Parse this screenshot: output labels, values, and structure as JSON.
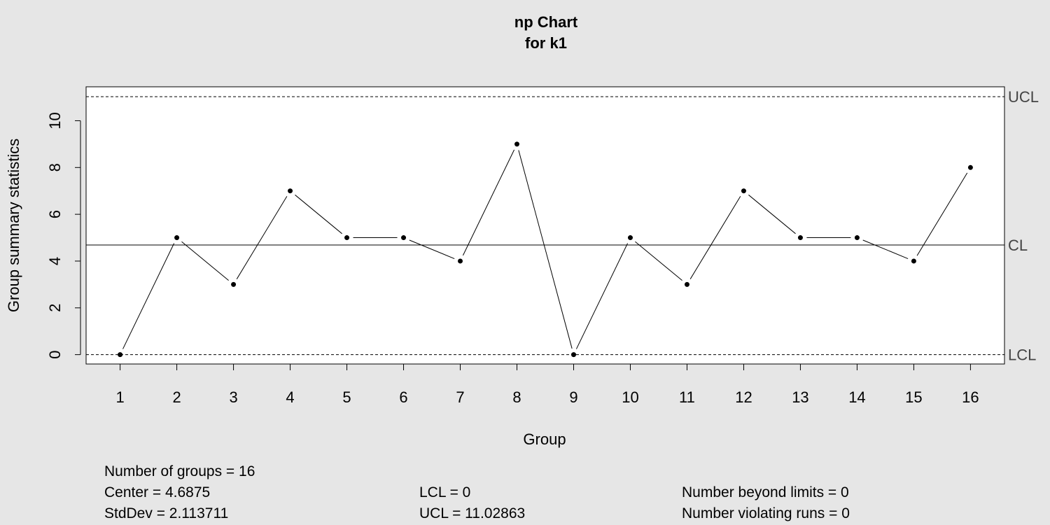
{
  "chart_data": {
    "type": "line",
    "title": "np Chart",
    "subtitle": "for k1",
    "xlabel": "Group",
    "ylabel": "Group summary statistics",
    "categories": [
      "1",
      "2",
      "3",
      "4",
      "5",
      "6",
      "7",
      "8",
      "9",
      "10",
      "11",
      "12",
      "13",
      "14",
      "15",
      "16"
    ],
    "series": [
      {
        "values": [
          0,
          5,
          3,
          7,
          5,
          5,
          4,
          9,
          0,
          5,
          3,
          7,
          5,
          5,
          4,
          8
        ]
      }
    ],
    "yticks": [
      0,
      2,
      4,
      6,
      8,
      10
    ],
    "ylim": [
      -0.4,
      11.45
    ],
    "xlim": [
      0.4,
      16.6
    ],
    "control_limits": {
      "UCL": 11.02863,
      "CL": 4.6875,
      "LCL": 0
    },
    "limit_labels": {
      "ucl": "UCL",
      "cl": "CL",
      "lcl": "LCL"
    },
    "grid": false,
    "legend": "none",
    "colors": {
      "background": "#e6e6e6",
      "plot_bg": "#ffffff",
      "line": "#000000",
      "limit_label": "#444444"
    }
  },
  "stats": {
    "groups": "Number of groups = 16",
    "center": "Center = 4.6875",
    "stddev": "StdDev = 2.113711",
    "lcl": "LCL = 0",
    "ucl": "UCL = 11.02863",
    "beyond": "Number beyond limits = 0",
    "violating": "Number violating runs = 0"
  }
}
